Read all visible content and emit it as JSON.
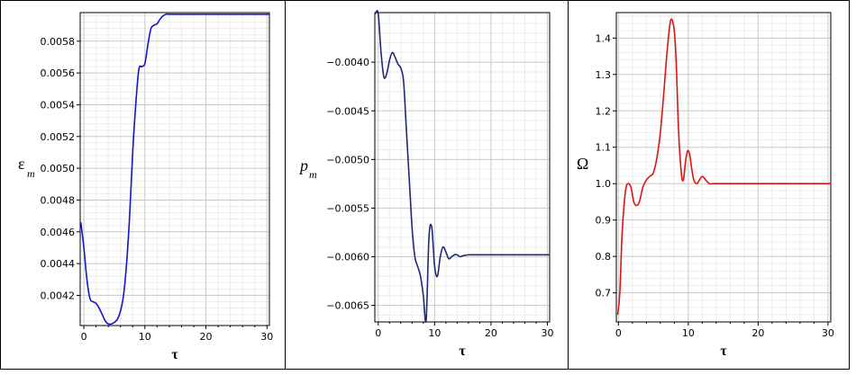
{
  "chart_data": [
    {
      "type": "line",
      "title": "",
      "xlabel": "τ",
      "ylabel": "ε",
      "ylabel_sub": "m",
      "xlim": [
        -0.6,
        30.4
      ],
      "ylim": [
        0.00401,
        0.00598
      ],
      "xticks": [
        0,
        10,
        20,
        30
      ],
      "xtick_labels": [
        "0",
        "10",
        "20",
        "30"
      ],
      "yticks": [
        0.0042,
        0.0044,
        0.0046,
        0.0048,
        0.005,
        0.0052,
        0.0054,
        0.0056,
        0.0058
      ],
      "ytick_labels": [
        "0.0042",
        "0.0044",
        "0.0046",
        "0.0048",
        "0.0050",
        "0.0052",
        "0.0054",
        "0.0056",
        "0.0058"
      ],
      "grid": true,
      "color": "#1414c8",
      "series": [
        {
          "x": [
            -0.5,
            0,
            0.5,
            1,
            1.5,
            2,
            2.5,
            3,
            3.5,
            4,
            4.5,
            5,
            5.5,
            6,
            6.5,
            7,
            7.5,
            8,
            8.5,
            9,
            9.5,
            10,
            10.5,
            11,
            11.5,
            12,
            12.5,
            13,
            13.5,
            14,
            15,
            16,
            18,
            20,
            25,
            30.4
          ],
          "y": [
            0.00466,
            0.0045,
            0.0043,
            0.00418,
            0.00416,
            0.00415,
            0.00412,
            0.00408,
            0.00404,
            0.00402,
            0.00402,
            0.00403,
            0.00405,
            0.0041,
            0.0042,
            0.0044,
            0.0047,
            0.0051,
            0.0054,
            0.00562,
            0.00564,
            0.00566,
            0.00578,
            0.00588,
            0.0059,
            0.00591,
            0.00594,
            0.00596,
            0.00597,
            0.00597,
            0.00597,
            0.00597,
            0.00597,
            0.00597,
            0.00597,
            0.00597
          ]
        }
      ]
    },
    {
      "type": "line",
      "title": "",
      "xlabel": "τ",
      "ylabel": "p",
      "ylabel_sub": "m",
      "xlim": [
        -0.6,
        30.4
      ],
      "ylim": [
        -0.00667,
        -0.00349
      ],
      "xticks": [
        0,
        10,
        20,
        30
      ],
      "xtick_labels": [
        "0",
        "10",
        "20",
        "30"
      ],
      "yticks": [
        -0.0065,
        -0.006,
        -0.0055,
        -0.005,
        -0.0045,
        -0.004
      ],
      "ytick_labels": [
        "−0.0065",
        "−0.0060",
        "−0.0055",
        "−0.0050",
        "−0.0045",
        "−0.0040"
      ],
      "grid": true,
      "color": "#1e2a78",
      "series": [
        {
          "x": [
            -0.5,
            0,
            0.5,
            1,
            1.5,
            2,
            2.5,
            3,
            3.5,
            4,
            4.5,
            5,
            5.5,
            6,
            6.5,
            7,
            7.5,
            8,
            8.5,
            9,
            9.5,
            10,
            10.5,
            11,
            11.5,
            12,
            12.5,
            13,
            13.5,
            14,
            14.5,
            15,
            16,
            17,
            18,
            20,
            25,
            30.4
          ],
          "y": [
            -0.0035,
            -0.0035,
            -0.0039,
            -0.00415,
            -0.00412,
            -0.00398,
            -0.0039,
            -0.00395,
            -0.00402,
            -0.00406,
            -0.0042,
            -0.0047,
            -0.0052,
            -0.0057,
            -0.006,
            -0.0061,
            -0.0062,
            -0.0064,
            -0.00665,
            -0.0058,
            -0.0057,
            -0.0061,
            -0.0062,
            -0.006,
            -0.0059,
            -0.00595,
            -0.00602,
            -0.006,
            -0.00598,
            -0.00598,
            -0.006,
            -0.00599,
            -0.00598,
            -0.00598,
            -0.00598,
            -0.00598,
            -0.00598,
            -0.00598
          ]
        }
      ]
    },
    {
      "type": "line",
      "title": "",
      "xlabel": "τ",
      "ylabel": "Ω",
      "ylabel_sub": "",
      "xlim": [
        -0.3,
        30.4
      ],
      "ylim": [
        0.62,
        1.47
      ],
      "xticks": [
        0,
        10,
        20,
        30
      ],
      "xtick_labels": [
        "0",
        "10",
        "20",
        "30"
      ],
      "yticks": [
        0.7,
        0.8,
        0.9,
        1.0,
        1.1,
        1.2,
        1.3,
        1.4
      ],
      "ytick_labels": [
        "0.7",
        "0.8",
        "0.9",
        "1.0",
        "1.1",
        "1.2",
        "1.3",
        "1.4"
      ],
      "grid": true,
      "color": "#dc1414",
      "series": [
        {
          "x": [
            -0.1,
            0.2,
            0.5,
            0.8,
            1.1,
            1.4,
            1.8,
            2.2,
            2.6,
            3,
            3.5,
            4,
            4.5,
            5,
            5.5,
            6,
            6.5,
            7,
            7.5,
            8,
            8.3,
            8.6,
            9,
            9.3,
            9.6,
            9.9,
            10.2,
            10.5,
            10.8,
            11.2,
            11.6,
            12,
            12.5,
            13,
            13.5,
            14,
            15,
            16,
            17,
            18,
            20,
            25,
            30.4
          ],
          "y": [
            0.64,
            0.7,
            0.85,
            0.94,
            0.99,
            1.0,
            0.99,
            0.95,
            0.94,
            0.95,
            0.99,
            1.01,
            1.02,
            1.03,
            1.07,
            1.14,
            1.25,
            1.37,
            1.45,
            1.42,
            1.32,
            1.15,
            1.03,
            1.01,
            1.06,
            1.09,
            1.08,
            1.04,
            1.01,
            1.0,
            1.01,
            1.02,
            1.01,
            1.0,
            1.0,
            1.0,
            1.0,
            1.0,
            1.0,
            1.0,
            1.0,
            1.0,
            1.0
          ]
        }
      ]
    }
  ]
}
